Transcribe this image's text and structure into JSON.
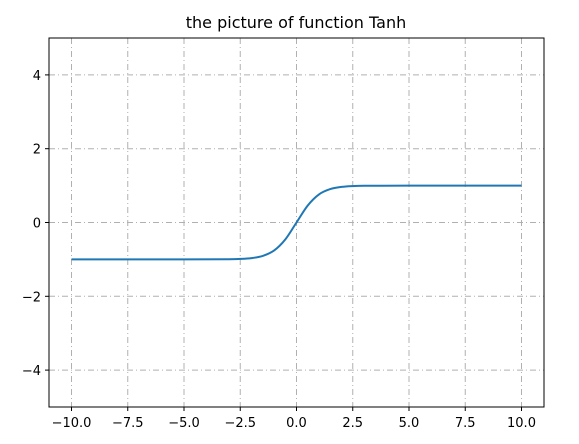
{
  "chart_data": {
    "type": "line",
    "title": "the picture of function Tanh",
    "xlabel": "",
    "ylabel": "",
    "xlim": [
      -11,
      11
    ],
    "ylim": [
      -5,
      5
    ],
    "grid": true,
    "x_ticks": [
      -10.0,
      -7.5,
      -5.0,
      -2.5,
      0.0,
      2.5,
      5.0,
      7.5,
      10.0
    ],
    "x_tick_labels": [
      "−10.0",
      "−7.5",
      "−5.0",
      "−2.5",
      "0.0",
      "2.5",
      "5.0",
      "7.5",
      "10.0"
    ],
    "y_ticks": [
      -4,
      -2,
      0,
      2,
      4
    ],
    "y_tick_labels": [
      "−4",
      "−2",
      "0",
      "2",
      "4"
    ],
    "series": [
      {
        "color": "#1f77b4",
        "x": [
          -10,
          -5,
          -3,
          -2.5,
          -2,
          -1.5,
          -1,
          -0.5,
          0,
          0.5,
          1,
          1.5,
          2,
          2.5,
          3,
          5,
          10
        ],
        "y": [
          -1.0,
          -0.9999,
          -0.995,
          -0.987,
          -0.964,
          -0.905,
          -0.762,
          -0.462,
          0.0,
          0.462,
          0.762,
          0.905,
          0.964,
          0.987,
          0.995,
          0.9999,
          1.0
        ]
      }
    ]
  }
}
